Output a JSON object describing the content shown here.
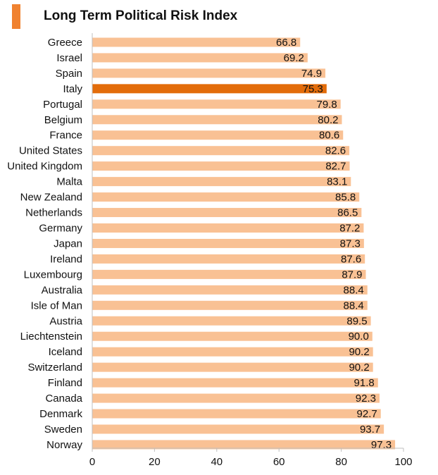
{
  "chart_data": {
    "type": "bar",
    "orientation": "horizontal",
    "title": "Long Term Political Risk Index",
    "categories": [
      "Greece",
      "Israel",
      "Spain",
      "Italy",
      "Portugal",
      "Belgium",
      "France",
      "United States",
      "United Kingdom",
      "Malta",
      "New Zealand",
      "Netherlands",
      "Germany",
      "Japan",
      "Ireland",
      "Luxembourg",
      "Australia",
      "Isle of Man",
      "Austria",
      "Liechtenstein",
      "Iceland",
      "Switzerland",
      "Finland",
      "Canada",
      "Denmark",
      "Sweden",
      "Norway"
    ],
    "values": [
      66.8,
      69.2,
      74.9,
      75.3,
      79.8,
      80.2,
      80.6,
      82.6,
      82.7,
      83.1,
      85.8,
      86.5,
      87.2,
      87.3,
      87.6,
      87.9,
      88.4,
      88.4,
      89.5,
      90.0,
      90.2,
      90.2,
      91.8,
      92.3,
      92.7,
      93.7,
      97.3
    ],
    "value_labels": [
      "66.8",
      "69.2",
      "74.9",
      "75.3",
      "79.8",
      "80.2",
      "80.6",
      "82.6",
      "82.7",
      "83.1",
      "85.8",
      "86.5",
      "87.2",
      "87.3",
      "87.6",
      "87.9",
      "88.4",
      "88.4",
      "89.5",
      "90.0",
      "90.2",
      "90.2",
      "91.8",
      "92.3",
      "92.7",
      "93.7",
      "97.3"
    ],
    "highlight": "Italy",
    "xlim": [
      0,
      100
    ],
    "xticks": [
      "0",
      "20",
      "40",
      "60",
      "80",
      "100"
    ],
    "grid": false,
    "colors": {
      "bar": "#f9c194",
      "highlight": "#e36c0a",
      "header_accent": "#f08230"
    }
  }
}
